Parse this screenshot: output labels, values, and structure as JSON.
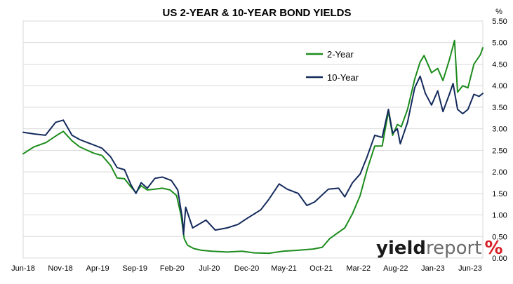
{
  "chart_data": {
    "type": "line",
    "title": "US 2-YEAR & 10-YEAR BOND YIELDS",
    "y_unit_label": "%",
    "ylim": [
      0,
      5.5
    ],
    "y_ticks": [
      "0.00",
      "0.50",
      "1.00",
      "1.50",
      "2.00",
      "2.50",
      "3.00",
      "3.50",
      "4.00",
      "4.50",
      "5.00",
      "5.50"
    ],
    "y_axis_position": "right",
    "x_ticks": [
      "Jun-18",
      "Nov-18",
      "Apr-19",
      "Sep-19",
      "Feb-20",
      "Jul-20",
      "Dec-20",
      "May-21",
      "Oct-21",
      "Mar-22",
      "Aug-22",
      "Jan-23",
      "Jun-23"
    ],
    "xlim": [
      "2018-06-01",
      "2023-06-30"
    ],
    "grid": "horizontal",
    "legend_position": "top-right",
    "series": [
      {
        "name": "2-Year",
        "color": "#1c8c1c",
        "points": [
          [
            "2018-06-01",
            2.42
          ],
          [
            "2018-07-15",
            2.58
          ],
          [
            "2018-09-01",
            2.68
          ],
          [
            "2018-10-15",
            2.85
          ],
          [
            "2018-11-10",
            2.94
          ],
          [
            "2018-12-15",
            2.72
          ],
          [
            "2019-01-15",
            2.58
          ],
          [
            "2019-02-15",
            2.5
          ],
          [
            "2019-03-15",
            2.43
          ],
          [
            "2019-04-15",
            2.38
          ],
          [
            "2019-05-20",
            2.15
          ],
          [
            "2019-06-15",
            1.86
          ],
          [
            "2019-07-15",
            1.84
          ],
          [
            "2019-08-10",
            1.65
          ],
          [
            "2019-08-30",
            1.52
          ],
          [
            "2019-09-20",
            1.68
          ],
          [
            "2019-10-15",
            1.58
          ],
          [
            "2019-11-15",
            1.6
          ],
          [
            "2019-12-15",
            1.62
          ],
          [
            "2020-01-15",
            1.58
          ],
          [
            "2020-02-10",
            1.45
          ],
          [
            "2020-02-28",
            1.0
          ],
          [
            "2020-03-12",
            0.45
          ],
          [
            "2020-03-25",
            0.3
          ],
          [
            "2020-04-20",
            0.22
          ],
          [
            "2020-05-20",
            0.18
          ],
          [
            "2020-07-01",
            0.16
          ],
          [
            "2020-09-01",
            0.14
          ],
          [
            "2020-11-01",
            0.16
          ],
          [
            "2020-12-20",
            0.12
          ],
          [
            "2021-02-15",
            0.11
          ],
          [
            "2021-04-15",
            0.16
          ],
          [
            "2021-06-15",
            0.18
          ],
          [
            "2021-08-15",
            0.21
          ],
          [
            "2021-09-20",
            0.25
          ],
          [
            "2021-10-20",
            0.45
          ],
          [
            "2021-11-20",
            0.58
          ],
          [
            "2021-12-20",
            0.7
          ],
          [
            "2022-01-20",
            1.03
          ],
          [
            "2022-02-20",
            1.45
          ],
          [
            "2022-03-20",
            2.05
          ],
          [
            "2022-04-20",
            2.6
          ],
          [
            "2022-05-20",
            2.6
          ],
          [
            "2022-06-14",
            3.4
          ],
          [
            "2022-07-01",
            2.85
          ],
          [
            "2022-07-20",
            3.1
          ],
          [
            "2022-08-05",
            3.05
          ],
          [
            "2022-08-30",
            3.45
          ],
          [
            "2022-09-28",
            4.15
          ],
          [
            "2022-10-20",
            4.55
          ],
          [
            "2022-11-05",
            4.7
          ],
          [
            "2022-12-05",
            4.3
          ],
          [
            "2022-12-30",
            4.4
          ],
          [
            "2023-01-20",
            4.12
          ],
          [
            "2023-02-15",
            4.6
          ],
          [
            "2023-03-08",
            5.05
          ],
          [
            "2023-03-20",
            3.85
          ],
          [
            "2023-04-10",
            4.0
          ],
          [
            "2023-05-01",
            3.95
          ],
          [
            "2023-05-25",
            4.5
          ],
          [
            "2023-06-20",
            4.72
          ],
          [
            "2023-06-30",
            4.88
          ]
        ]
      },
      {
        "name": "10-Year",
        "color": "#142a5c",
        "points": [
          [
            "2018-06-01",
            2.92
          ],
          [
            "2018-07-15",
            2.88
          ],
          [
            "2018-08-30",
            2.85
          ],
          [
            "2018-10-10",
            3.15
          ],
          [
            "2018-11-10",
            3.2
          ],
          [
            "2018-12-15",
            2.85
          ],
          [
            "2019-01-15",
            2.75
          ],
          [
            "2019-02-15",
            2.68
          ],
          [
            "2019-03-15",
            2.62
          ],
          [
            "2019-04-15",
            2.55
          ],
          [
            "2019-05-20",
            2.35
          ],
          [
            "2019-06-15",
            2.1
          ],
          [
            "2019-07-15",
            2.05
          ],
          [
            "2019-08-10",
            1.7
          ],
          [
            "2019-08-30",
            1.5
          ],
          [
            "2019-09-20",
            1.75
          ],
          [
            "2019-10-15",
            1.62
          ],
          [
            "2019-11-15",
            1.85
          ],
          [
            "2019-12-15",
            1.88
          ],
          [
            "2020-01-20",
            1.8
          ],
          [
            "2020-02-15",
            1.58
          ],
          [
            "2020-03-05",
            0.9
          ],
          [
            "2020-03-09",
            0.55
          ],
          [
            "2020-03-18",
            1.18
          ],
          [
            "2020-04-15",
            0.7
          ],
          [
            "2020-06-08",
            0.88
          ],
          [
            "2020-07-15",
            0.65
          ],
          [
            "2020-09-01",
            0.7
          ],
          [
            "2020-10-15",
            0.78
          ],
          [
            "2020-11-15",
            0.9
          ],
          [
            "2021-01-15",
            1.12
          ],
          [
            "2021-02-15",
            1.35
          ],
          [
            "2021-03-30",
            1.72
          ],
          [
            "2021-05-01",
            1.6
          ],
          [
            "2021-06-15",
            1.5
          ],
          [
            "2021-07-20",
            1.22
          ],
          [
            "2021-08-20",
            1.3
          ],
          [
            "2021-10-15",
            1.6
          ],
          [
            "2021-11-25",
            1.62
          ],
          [
            "2021-12-20",
            1.42
          ],
          [
            "2022-01-20",
            1.75
          ],
          [
            "2022-02-20",
            1.95
          ],
          [
            "2022-03-20",
            2.35
          ],
          [
            "2022-04-20",
            2.85
          ],
          [
            "2022-05-20",
            2.8
          ],
          [
            "2022-06-14",
            3.45
          ],
          [
            "2022-07-01",
            2.9
          ],
          [
            "2022-07-20",
            3.0
          ],
          [
            "2022-08-01",
            2.65
          ],
          [
            "2022-08-30",
            3.15
          ],
          [
            "2022-09-28",
            3.95
          ],
          [
            "2022-10-20",
            4.22
          ],
          [
            "2022-11-10",
            3.82
          ],
          [
            "2022-12-05",
            3.55
          ],
          [
            "2022-12-30",
            3.88
          ],
          [
            "2023-01-20",
            3.4
          ],
          [
            "2023-02-15",
            3.8
          ],
          [
            "2023-03-02",
            4.05
          ],
          [
            "2023-03-20",
            3.45
          ],
          [
            "2023-04-10",
            3.35
          ],
          [
            "2023-05-01",
            3.45
          ],
          [
            "2023-05-25",
            3.8
          ],
          [
            "2023-06-15",
            3.75
          ],
          [
            "2023-06-30",
            3.82
          ]
        ]
      }
    ]
  },
  "branding": {
    "logo_word_dark": "yield",
    "logo_word_light": "report",
    "logo_symbol": "%",
    "dark_color": "#1a1a1a",
    "light_color": "#6b6b6b",
    "accent_color": "#d81f26"
  }
}
